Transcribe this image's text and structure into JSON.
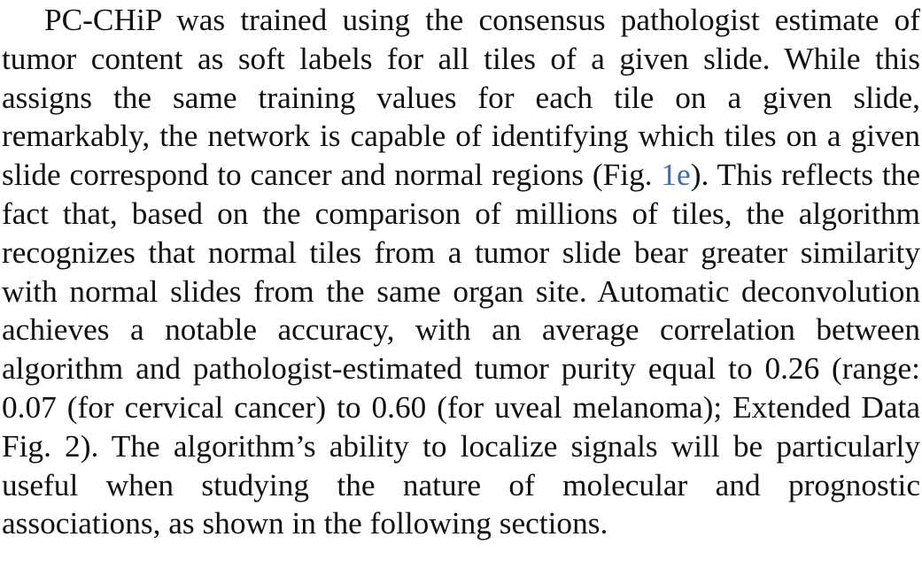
{
  "paragraph": {
    "part1": "PC-CHiP was trained using the consensus pathologist estimate of tumor content as soft labels for all tiles of a given slide. While this assigns the same training values for each tile on a given slide, remarkably, the network is capable of identifying which tiles on a given slide correspond to cancer and normal regions (Fig. ",
    "ref_fig": "1e",
    "part2": "). This reflects the fact that, based on the comparison of millions of tiles, the algorithm recognizes that normal tiles from a tumor slide bear greater similarity with normal slides from the same organ site. Automatic deconvolution achieves a notable accuracy, with an aver­age correlation between algorithm and pathologist-estimated tumor purity equal to 0.26 (range: 0.07 (for cervical cancer) to 0.60 (for uveal melanoma); Extended Data Fig. 2). The algorithm’s ability to localize signals will be particularly useful when studying the nature of molecular and prognostic associations, as shown in the following sections."
  },
  "colors": {
    "text": "#111111",
    "link": "#3a6ea8"
  }
}
